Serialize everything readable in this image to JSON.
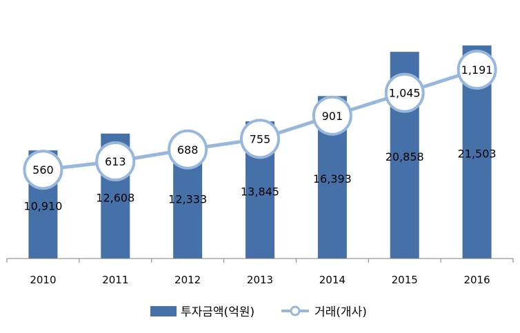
{
  "chart_data": {
    "type": "bar-line",
    "categories": [
      "2010",
      "2011",
      "2012",
      "2013",
      "2014",
      "2015",
      "2016"
    ],
    "series": [
      {
        "name": "투자금액(억원)",
        "type": "bar",
        "axis": "left",
        "values": [
          10910,
          12608,
          12333,
          13845,
          16393,
          20858,
          21503
        ],
        "labels": [
          "10,910",
          "12,608",
          "12,333",
          "13,845",
          "16,393",
          "20,858",
          "21,503"
        ]
      },
      {
        "name": "거래(개사)",
        "type": "line",
        "axis": "right",
        "values": [
          560,
          613,
          688,
          755,
          901,
          1045,
          1191
        ],
        "labels": [
          "560",
          "613",
          "688",
          "755",
          "901",
          "1,045",
          "1,191"
        ]
      }
    ],
    "bar_ylim": [
      0,
      24000
    ],
    "line_ylim": [
      0,
      1500
    ],
    "grid": false,
    "legend": "bottom",
    "colors": {
      "bar": "#4570a8",
      "line": "#98b7dd",
      "marker_fill": "#ffffff"
    }
  }
}
